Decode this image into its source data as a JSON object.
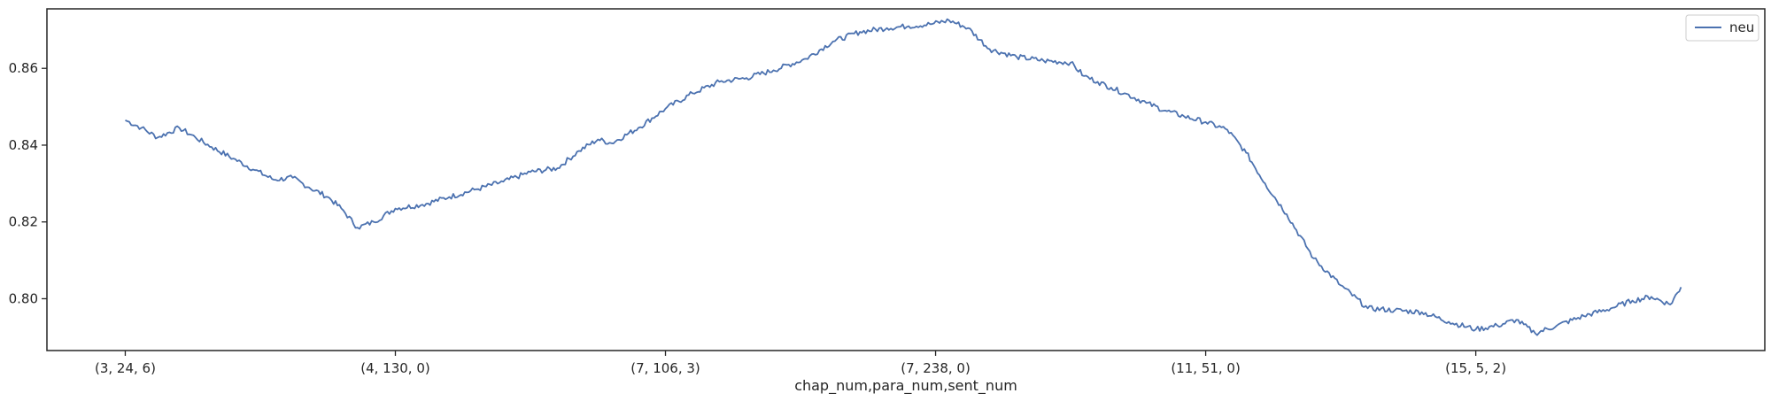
{
  "chart_data": {
    "type": "line",
    "title": "",
    "xlabel": "chap_num,para_num,sent_num",
    "ylabel": "",
    "x_tick_labels": [
      "(3, 24, 6)",
      "(4, 130, 0)",
      "(7, 106, 3)",
      "(7, 238, 0)",
      "(11, 51, 0)",
      "(15, 5, 2)"
    ],
    "y_ticks": [
      0.8,
      0.82,
      0.84,
      0.86
    ],
    "y_tick_labels": [
      "0.80",
      "0.82",
      "0.84",
      "0.86"
    ],
    "ylim": [
      0.7865,
      0.8755
    ],
    "xlim": [
      -0.29,
      6.07
    ],
    "grid": false,
    "legend_position": "top-right",
    "series": [
      {
        "name": "neu",
        "color": "#4c72b0",
        "x": [
          0.0,
          0.06,
          0.12,
          0.2,
          0.26,
          0.32,
          0.4,
          0.48,
          0.55,
          0.62,
          0.68,
          0.75,
          0.8,
          0.86,
          0.92,
          1.0,
          1.1,
          1.2,
          1.3,
          1.4,
          1.5,
          1.6,
          1.68,
          1.75,
          1.8,
          1.9,
          2.0,
          2.1,
          2.2,
          2.3,
          2.4,
          2.52,
          2.62,
          2.72,
          2.82,
          2.9,
          2.98,
          3.05,
          3.12,
          3.2,
          3.3,
          3.4,
          3.5,
          3.55,
          3.6,
          3.65,
          3.7,
          3.78,
          3.85,
          3.92,
          4.0,
          4.08,
          4.15,
          4.22,
          4.3,
          4.4,
          4.5,
          4.6,
          4.7,
          4.8,
          4.9,
          5.0,
          5.08,
          5.15,
          5.22,
          5.3,
          5.4,
          5.5,
          5.58,
          5.65,
          5.72,
          5.76
        ],
        "y": [
          0.8465,
          0.8445,
          0.842,
          0.8445,
          0.842,
          0.8395,
          0.8365,
          0.8335,
          0.831,
          0.8315,
          0.829,
          0.8265,
          0.8235,
          0.8185,
          0.82,
          0.8235,
          0.8245,
          0.8265,
          0.8285,
          0.8305,
          0.833,
          0.834,
          0.8385,
          0.8415,
          0.8405,
          0.8445,
          0.8495,
          0.8535,
          0.8565,
          0.8575,
          0.8595,
          0.8625,
          0.867,
          0.8695,
          0.8705,
          0.871,
          0.8715,
          0.8725,
          0.8705,
          0.865,
          0.863,
          0.862,
          0.8615,
          0.858,
          0.8565,
          0.855,
          0.8535,
          0.851,
          0.849,
          0.8475,
          0.846,
          0.844,
          0.838,
          0.83,
          0.822,
          0.8105,
          0.8035,
          0.7975,
          0.797,
          0.7965,
          0.794,
          0.792,
          0.793,
          0.7945,
          0.791,
          0.793,
          0.7955,
          0.7975,
          0.7995,
          0.8005,
          0.7985,
          0.803
        ]
      }
    ]
  }
}
